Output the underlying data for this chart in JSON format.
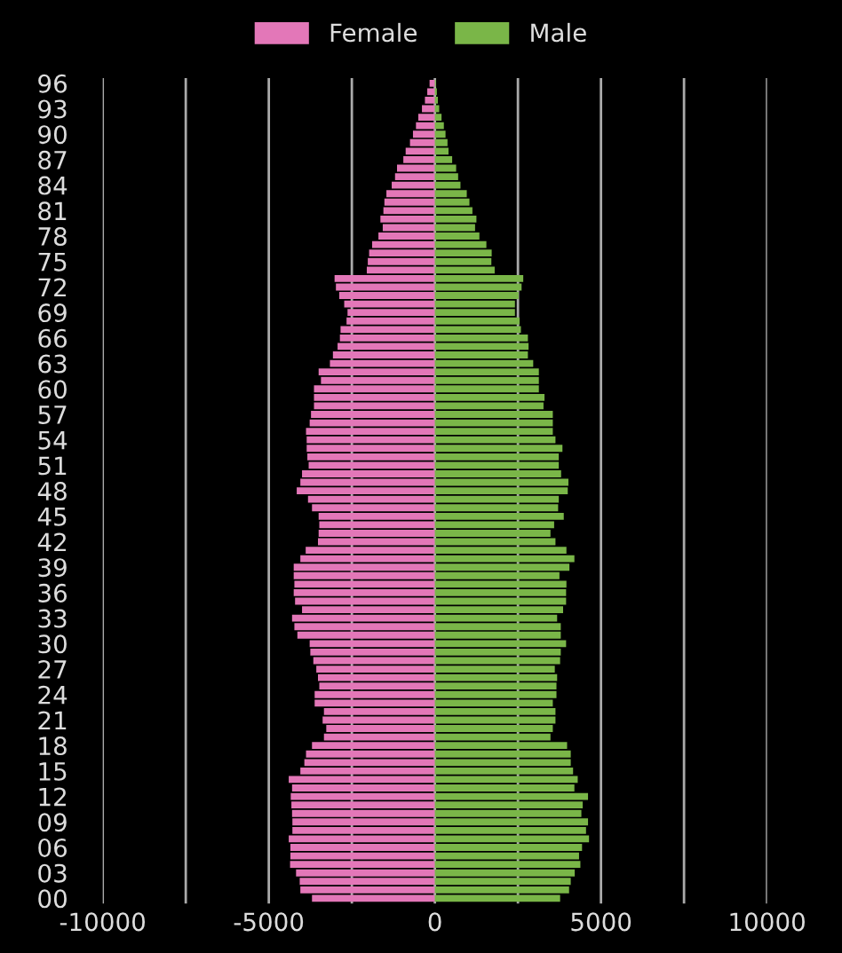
{
  "chart_data": {
    "type": "bar",
    "orientation": "horizontal",
    "categories": [
      "96",
      null,
      null,
      "93",
      null,
      null,
      "90",
      null,
      null,
      "87",
      null,
      null,
      "84",
      null,
      null,
      "81",
      null,
      null,
      "78",
      null,
      null,
      "75",
      null,
      null,
      "72",
      null,
      null,
      "69",
      null,
      null,
      "66",
      null,
      null,
      "63",
      null,
      null,
      "60",
      null,
      null,
      "57",
      null,
      null,
      "54",
      null,
      null,
      "51",
      null,
      null,
      "48",
      null,
      null,
      "45",
      null,
      null,
      "42",
      null,
      null,
      "39",
      null,
      null,
      "36",
      null,
      null,
      "33",
      null,
      null,
      "30",
      null,
      null,
      "27",
      null,
      null,
      "24",
      null,
      null,
      "21",
      null,
      null,
      "18",
      null,
      null,
      "15",
      null,
      null,
      "12",
      null,
      null,
      "09",
      null,
      null,
      "06",
      null,
      null,
      "03",
      null,
      null,
      "00"
    ],
    "series": [
      {
        "name": "Female",
        "color": "#e377b8",
        "values": [
          -160,
          -230,
          -300,
          -390,
          -500,
          -570,
          -660,
          -750,
          -880,
          -950,
          -1140,
          -1200,
          -1300,
          -1460,
          -1520,
          -1550,
          -1640,
          -1570,
          -1700,
          -1890,
          -1980,
          -2020,
          -2050,
          -3020,
          -2980,
          -2880,
          -2730,
          -2630,
          -2660,
          -2840,
          -2860,
          -2930,
          -3070,
          -3160,
          -3500,
          -3430,
          -3640,
          -3640,
          -3640,
          -3730,
          -3770,
          -3880,
          -3860,
          -3860,
          -3840,
          -3800,
          -4000,
          -4050,
          -4160,
          -3820,
          -3700,
          -3500,
          -3480,
          -3500,
          -3520,
          -3890,
          -4050,
          -4250,
          -4250,
          -4230,
          -4250,
          -4210,
          -4000,
          -4300,
          -4230,
          -4140,
          -3770,
          -3750,
          -3660,
          -3570,
          -3520,
          -3480,
          -3620,
          -3620,
          -3340,
          -3380,
          -3270,
          -3340,
          -3700,
          -3880,
          -3930,
          -4050,
          -4400,
          -4300,
          -4340,
          -4320,
          -4300,
          -4290,
          -4290,
          -4400,
          -4350,
          -4350,
          -4360,
          -4180,
          -4070,
          -4050,
          -3700
        ]
      },
      {
        "name": "Male",
        "color": "#7ab648",
        "values": [
          30,
          60,
          90,
          130,
          200,
          270,
          320,
          380,
          410,
          520,
          640,
          700,
          770,
          960,
          1040,
          1130,
          1250,
          1210,
          1340,
          1550,
          1710,
          1700,
          1800,
          2660,
          2610,
          2520,
          2410,
          2410,
          2550,
          2590,
          2800,
          2820,
          2800,
          2960,
          3130,
          3130,
          3130,
          3300,
          3270,
          3550,
          3550,
          3550,
          3630,
          3840,
          3730,
          3730,
          3800,
          4020,
          4000,
          3730,
          3710,
          3880,
          3590,
          3480,
          3630,
          3960,
          4200,
          4050,
          3750,
          3960,
          3950,
          3950,
          3860,
          3680,
          3790,
          3790,
          3950,
          3790,
          3770,
          3610,
          3680,
          3660,
          3660,
          3550,
          3630,
          3630,
          3550,
          3480,
          3980,
          4090,
          4090,
          4160,
          4300,
          4200,
          4610,
          4450,
          4410,
          4610,
          4550,
          4640,
          4430,
          4340,
          4380,
          4210,
          4090,
          4040,
          3770
        ]
      }
    ],
    "xlim": [
      -10000,
      10000
    ],
    "xticks": [
      -10000,
      {
        "value": -7500,
        "label": null
      },
      -5000,
      {
        "value": -2500,
        "label": null
      },
      0,
      {
        "value": 2500,
        "label": null
      },
      5000,
      {
        "value": 7500,
        "label": null
      },
      10000
    ],
    "grid": "x",
    "legend": "top",
    "stacked": true
  }
}
